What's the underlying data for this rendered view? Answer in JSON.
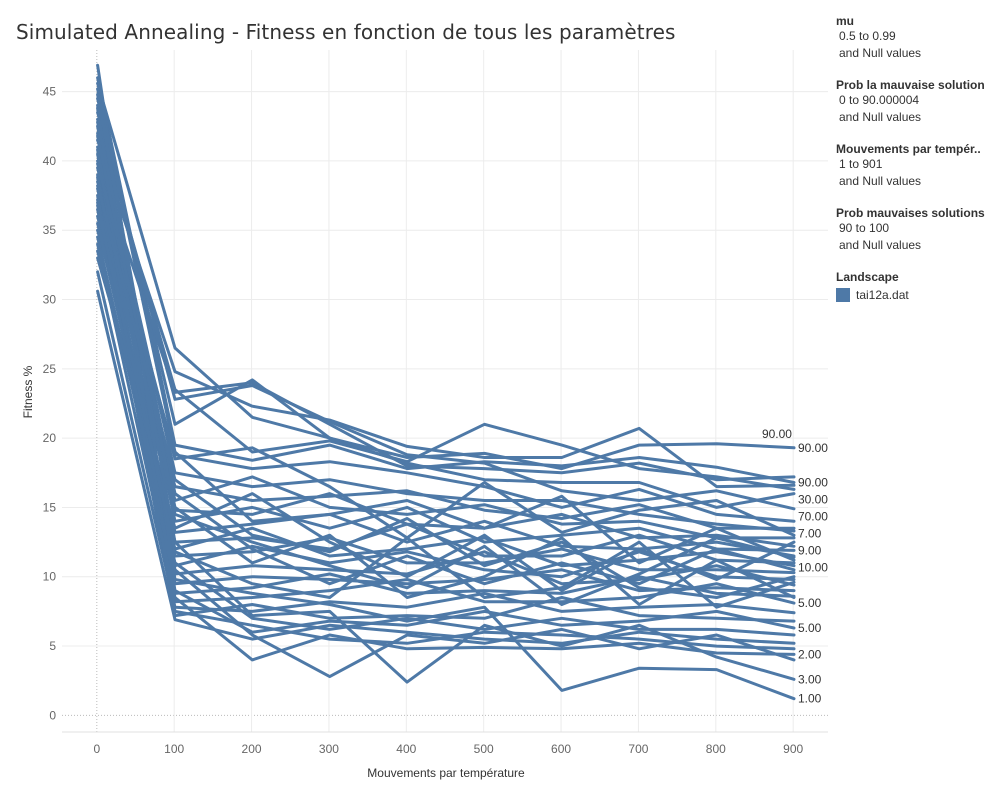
{
  "title": "Simulated Annealing - Fitness en fonction de tous les paramètres",
  "colors": {
    "series": "#4e79a7",
    "grid": "#ececec",
    "zero": "#bbbbbb"
  },
  "filters": [
    {
      "title": "mu",
      "range": "0.5 to 0.99",
      "nulls": "and Null values"
    },
    {
      "title": "Prob la mauvaise solution",
      "range": "0 to 90.000004",
      "nulls": "and Null values"
    },
    {
      "title": "Mouvements par tempér..",
      "range": "1 to 901",
      "nulls": "and Null values"
    },
    {
      "title": "Prob mauvaises solutions",
      "range": "90 to 100",
      "nulls": "and Null values"
    }
  ],
  "legend": {
    "title": "Landscape",
    "items": [
      {
        "label": "tai12a.dat",
        "color": "#4e79a7"
      }
    ]
  },
  "chart_data": {
    "type": "line",
    "xlabel": "Mouvements par température",
    "ylabel": "Fitness %",
    "xlim": [
      -45,
      945
    ],
    "ylim": [
      -1.2,
      48
    ],
    "xticks": [
      0,
      100,
      200,
      300,
      400,
      500,
      600,
      700,
      800,
      900
    ],
    "yticks": [
      0,
      5,
      10,
      15,
      20,
      25,
      30,
      35,
      40,
      45
    ],
    "grid": true,
    "x": [
      1,
      101,
      201,
      301,
      401,
      501,
      601,
      701,
      801,
      901
    ],
    "series": [
      {
        "values": [
          44.5,
          21.0,
          24.2,
          20.0,
          18.6,
          18.9,
          17.8,
          19.5,
          19.6,
          19.3
        ],
        "label": "90.00"
      },
      {
        "values": [
          46.0,
          19.5,
          18.4,
          19.5,
          17.8,
          18.3,
          18.0,
          18.6,
          17.9,
          16.8
        ],
        "label": "90.00"
      },
      {
        "values": [
          43.0,
          23.5,
          19.0,
          19.8,
          18.3,
          21.0,
          19.5,
          17.8,
          17.2,
          16.3
        ],
        "label": "30.00"
      },
      {
        "values": [
          41.5,
          24.8,
          22.3,
          21.3,
          19.4,
          18.6,
          18.6,
          20.7,
          16.5,
          16.6
        ]
      },
      {
        "values": [
          45.6,
          26.5,
          21.5,
          20.0,
          18.2,
          17.0,
          16.8,
          16.8,
          15.0,
          16.0
        ]
      },
      {
        "values": [
          40.0,
          23.3,
          24.0,
          21.0,
          18.0,
          17.8,
          17.5,
          18.2,
          17.0,
          17.2
        ]
      },
      {
        "values": [
          43.5,
          22.8,
          23.8,
          21.2,
          18.8,
          18.2,
          16.2,
          15.5,
          16.2,
          14.9
        ],
        "label": "70.00"
      },
      {
        "values": [
          38.5,
          18.8,
          17.8,
          18.3,
          17.5,
          16.5,
          15.0,
          16.3,
          14.5,
          14.0
        ]
      },
      {
        "values": [
          42.0,
          17.5,
          16.5,
          17.0,
          16.0,
          15.5,
          15.5,
          14.5,
          13.8,
          13.3
        ],
        "label": "7.00"
      },
      {
        "values": [
          37.0,
          16.5,
          15.5,
          15.8,
          16.2,
          14.8,
          14.2,
          15.2,
          13.5,
          13.5
        ]
      },
      {
        "values": [
          39.5,
          15.5,
          17.2,
          15.0,
          14.5,
          15.2,
          13.8,
          14.0,
          12.8,
          12.8
        ]
      },
      {
        "values": [
          35.0,
          14.8,
          14.5,
          16.0,
          13.8,
          13.5,
          14.5,
          12.8,
          13.0,
          12.2
        ]
      },
      {
        "values": [
          41.0,
          14.0,
          15.0,
          13.5,
          15.0,
          12.5,
          13.0,
          13.5,
          12.0,
          11.9
        ],
        "label": "9.00"
      },
      {
        "values": [
          36.0,
          13.2,
          13.8,
          14.5,
          12.5,
          14.0,
          12.2,
          12.0,
          12.5,
          11.5
        ]
      },
      {
        "values": [
          44.0,
          12.5,
          12.8,
          12.0,
          13.8,
          11.5,
          11.5,
          13.0,
          11.2,
          11.0
        ]
      },
      {
        "values": [
          33.5,
          12.0,
          13.5,
          11.5,
          12.0,
          12.8,
          10.8,
          11.2,
          11.8,
          10.8
        ],
        "label": "10.00"
      },
      {
        "values": [
          38.0,
          11.5,
          11.8,
          12.8,
          11.0,
          11.0,
          12.0,
          10.5,
          10.5,
          10.3
        ]
      },
      {
        "values": [
          42.5,
          10.8,
          12.2,
          11.0,
          11.8,
          10.5,
          10.0,
          11.8,
          10.0,
          9.8
        ]
      },
      {
        "values": [
          34.5,
          10.2,
          10.8,
          10.5,
          10.2,
          11.8,
          9.5,
          9.8,
          10.8,
          9.4
        ]
      },
      {
        "values": [
          39.0,
          9.5,
          10.0,
          9.8,
          9.5,
          9.8,
          10.5,
          9.0,
          9.2,
          9.0
        ]
      },
      {
        "values": [
          36.5,
          8.8,
          9.2,
          10.2,
          8.8,
          9.0,
          8.8,
          10.0,
          8.8,
          8.6
        ]
      },
      {
        "values": [
          40.5,
          8.2,
          8.5,
          9.0,
          9.8,
          8.2,
          8.2,
          8.5,
          9.5,
          8.1
        ],
        "label": "5.00"
      },
      {
        "values": [
          32.0,
          7.8,
          7.5,
          8.2,
          7.8,
          8.8,
          7.5,
          7.8,
          8.0,
          7.4
        ]
      },
      {
        "values": [
          37.5,
          7.2,
          8.0,
          7.0,
          7.2,
          7.0,
          8.5,
          7.2,
          7.0,
          6.8
        ]
      },
      {
        "values": [
          43.8,
          9.0,
          6.0,
          6.8,
          6.5,
          7.5,
          6.5,
          6.8,
          7.5,
          6.3
        ],
        "label": "5.00"
      },
      {
        "values": [
          35.5,
          11.0,
          7.0,
          6.2,
          7.0,
          6.2,
          7.0,
          6.2,
          6.2,
          5.8
        ]
      },
      {
        "values": [
          30.6,
          6.9,
          5.5,
          6.5,
          6.0,
          5.5,
          5.2,
          6.0,
          5.5,
          5.2
        ]
      },
      {
        "values": [
          38.8,
          7.5,
          6.5,
          5.5,
          5.2,
          6.0,
          5.8,
          5.5,
          5.0,
          4.8
        ]
      },
      {
        "values": [
          34.0,
          8.5,
          4.0,
          5.8,
          4.8,
          4.9,
          4.8,
          5.2,
          4.5,
          4.4
        ],
        "label": "2.00"
      },
      {
        "values": [
          40.8,
          10.5,
          5.8,
          2.8,
          5.8,
          5.2,
          6.2,
          4.8,
          5.8,
          4.0
        ]
      },
      {
        "values": [
          37.2,
          12.5,
          7.2,
          7.5,
          2.4,
          6.5,
          5.0,
          6.5,
          4.2,
          2.6
        ],
        "label": "3.00"
      },
      {
        "values": [
          46.9,
          9.8,
          8.8,
          8.0,
          6.8,
          7.8,
          1.8,
          3.4,
          3.3,
          1.2
        ],
        "label": "1.00"
      },
      {
        "values": [
          42.8,
          16.0,
          12.0,
          9.5,
          11.5,
          9.5,
          11.0,
          9.5,
          12.0,
          10.5
        ]
      },
      {
        "values": [
          33.0,
          13.5,
          16.0,
          12.5,
          10.0,
          13.0,
          9.0,
          12.0,
          9.8,
          12.5
        ]
      },
      {
        "values": [
          45.2,
          19.0,
          14.0,
          14.5,
          15.5,
          13.5,
          15.8,
          11.0,
          13.5,
          11.2
        ]
      },
      {
        "values": [
          39.8,
          18.5,
          19.3,
          16.5,
          12.8,
          16.8,
          13.2,
          14.8,
          15.5,
          13.0
        ]
      },
      {
        "values": [
          41.8,
          15.0,
          11.0,
          13.0,
          8.5,
          10.0,
          12.8,
          8.0,
          11.2,
          8.5
        ]
      },
      {
        "values": [
          36.8,
          11.8,
          9.5,
          8.5,
          12.8,
          8.5,
          9.2,
          12.5,
          7.8,
          9.6
        ]
      },
      {
        "values": [
          44.8,
          14.5,
          12.5,
          10.8,
          9.2,
          12.2,
          8.0,
          10.2,
          12.8,
          11.4
        ]
      },
      {
        "values": [
          38.2,
          17.0,
          13.0,
          11.8,
          14.2,
          10.8,
          12.5,
          9.2,
          8.5,
          10.0
        ]
      }
    ]
  }
}
